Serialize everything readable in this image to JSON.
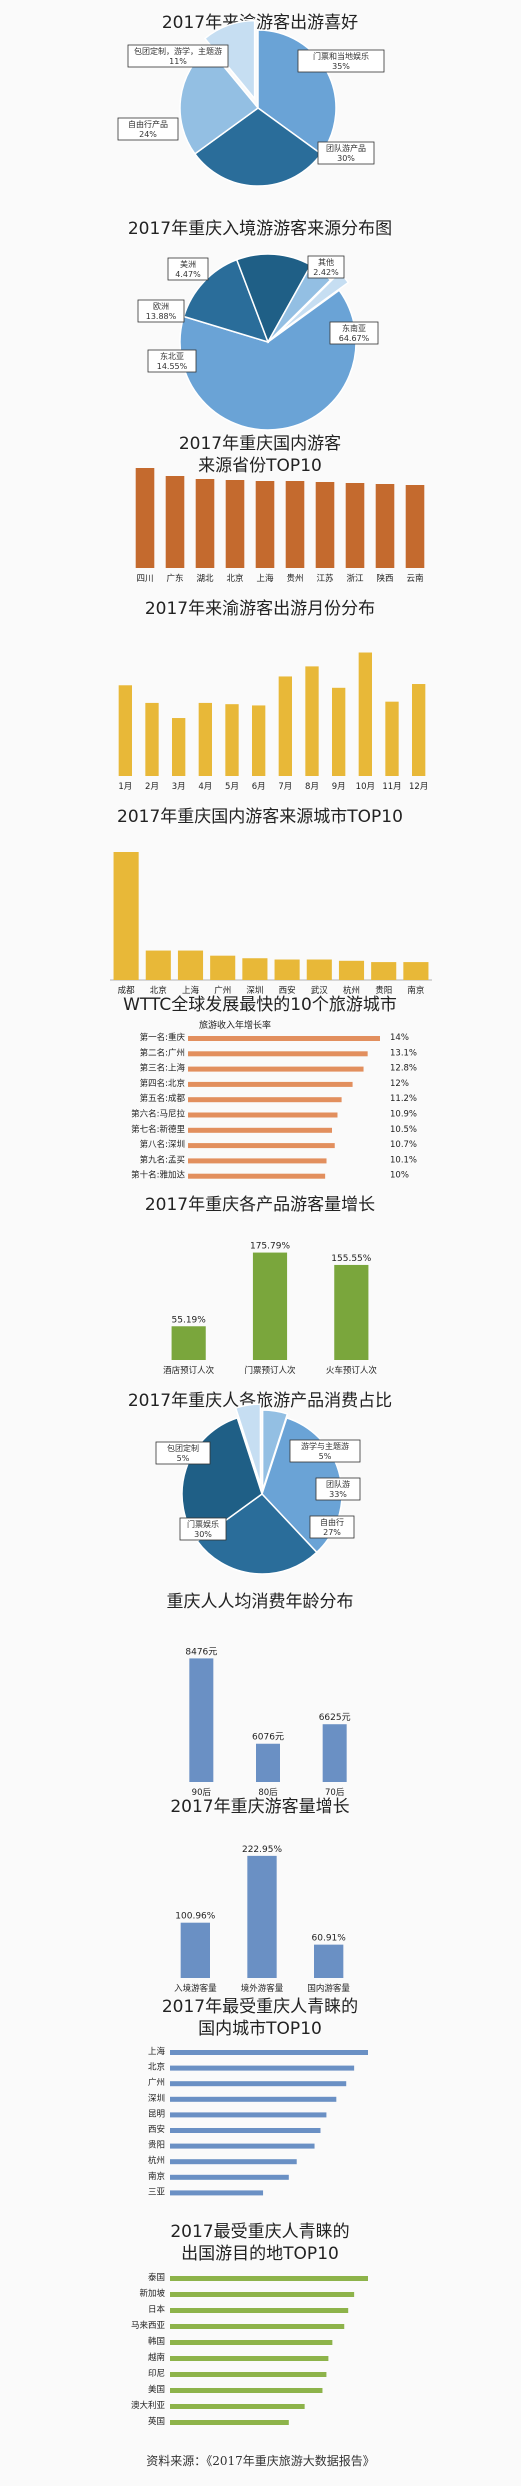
{
  "colors": {
    "pie_a": "#6aa3d6",
    "pie_b": "#2a6d9a",
    "pie_c": "#93bfe3",
    "pie_d": "#c6def2",
    "pie_e": "#1f5f86",
    "orange": "#c46a2e",
    "gold": "#e8b838",
    "salmon": "#e28f5e",
    "green": "#7aa63c",
    "blue": "#6a90c4",
    "lightgreen": "#8db34a"
  },
  "chart_data": [
    {
      "id": "c1",
      "type": "pie",
      "title": "2017年来渝游客出游喜好",
      "slices": [
        {
          "label": "门票和当地娱乐",
          "value": 35
        },
        {
          "label": "团队游产品",
          "value": 30
        },
        {
          "label": "自由行产品",
          "value": 24
        },
        {
          "label": "包团定制，游学，主题游",
          "value": 11
        }
      ],
      "value_labels": [
        "35%",
        "30%",
        "24%",
        "11%"
      ]
    },
    {
      "id": "c2",
      "type": "pie",
      "title": "2017年重庆入境游游客来源分布图",
      "slices": [
        {
          "label": "东南亚",
          "value": 64.67
        },
        {
          "label": "东北亚",
          "value": 14.55
        },
        {
          "label": "欧洲",
          "value": 13.88
        },
        {
          "label": "美洲",
          "value": 4.47
        },
        {
          "label": "其他",
          "value": 2.42
        }
      ],
      "value_labels": [
        "64.67%",
        "14.55%",
        "13.88%",
        "4.47%",
        "2.42%"
      ]
    },
    {
      "id": "c3",
      "type": "bar",
      "title": "2017年重庆国内游客",
      "subtitle": "来源省份TOP10",
      "categories": [
        "四川",
        "广东",
        "湖北",
        "北京",
        "上海",
        "贵州",
        "江苏",
        "浙江",
        "陕西",
        "云南"
      ],
      "values": [
        100,
        92,
        89,
        88,
        87,
        87,
        86,
        85,
        84,
        83
      ]
    },
    {
      "id": "c4",
      "type": "bar",
      "title": "2017年来渝游客出游月份分布",
      "categories": [
        "1月",
        "2月",
        "3月",
        "4月",
        "5月",
        "6月",
        "7月",
        "8月",
        "9月",
        "10月",
        "11月",
        "12月"
      ],
      "values": [
        72,
        58,
        46,
        58,
        57,
        56,
        79,
        87,
        70,
        98,
        59,
        73
      ]
    },
    {
      "id": "c5",
      "type": "bar",
      "title": "2017年重庆国内游客来源城市TOP10",
      "categories": [
        "成都",
        "北京",
        "上海",
        "广州",
        "深圳",
        "西安",
        "武汉",
        "杭州",
        "贵阳",
        "南京"
      ],
      "values": [
        100,
        23,
        23,
        19,
        17,
        16,
        16,
        15,
        14,
        14
      ]
    },
    {
      "id": "c6",
      "type": "bar",
      "orientation": "horizontal",
      "title": "WTTC全球发展最快的10个旅游城市",
      "subtitle": "旅游收入年增长率",
      "categories": [
        "第一名:重庆",
        "第二名:广州",
        "第三名:上海",
        "第四名:北京",
        "第五名:成都",
        "第六名:马尼拉",
        "第七名:新德里",
        "第八名:深圳",
        "第九名:孟买",
        "第十名:雅加达"
      ],
      "values": [
        14,
        13.1,
        12.8,
        12,
        11.2,
        10.9,
        10.5,
        10.7,
        10.1,
        10
      ],
      "value_labels": [
        "14%",
        "13.1%",
        "12.8%",
        "12%",
        "11.2%",
        "10.9%",
        "10.5%",
        "10.7%",
        "10.1%",
        "10%"
      ]
    },
    {
      "id": "c7",
      "type": "bar",
      "title": "2017年重庆各产品游客量增长",
      "categories": [
        "酒店预订人次",
        "门票预订人次",
        "火车预订人次"
      ],
      "values": [
        55.19,
        175.79,
        155.55
      ],
      "value_labels": [
        "55.19%",
        "175.79%",
        "155.55%"
      ]
    },
    {
      "id": "c8",
      "type": "pie",
      "title": "2017年重庆人各旅游产品消费占比",
      "slices": [
        {
          "label": "游学与主题游",
          "value": 5
        },
        {
          "label": "团队游",
          "value": 33
        },
        {
          "label": "自由行",
          "value": 27
        },
        {
          "label": "门票娱乐",
          "value": 30
        },
        {
          "label": "包团定制",
          "value": 5
        }
      ],
      "value_labels": [
        "5%",
        "33%",
        "27%",
        "30%",
        "5%"
      ]
    },
    {
      "id": "c9",
      "type": "bar",
      "title": "重庆人人均消费年龄分布",
      "categories": [
        "90后",
        "80后",
        "70后"
      ],
      "values": [
        8476,
        6076,
        6625
      ],
      "value_labels": [
        "8476元",
        "6076元",
        "6625元"
      ]
    },
    {
      "id": "c10",
      "type": "bar",
      "title": "2017年重庆游客量增长",
      "categories": [
        "入境游客量",
        "境外游客量",
        "国内游客量"
      ],
      "values": [
        100.96,
        222.95,
        60.91
      ],
      "value_labels": [
        "100.96%",
        "222.95%",
        "60.91%"
      ]
    },
    {
      "id": "c11",
      "type": "bar",
      "orientation": "horizontal",
      "title": "2017年最受重庆人青睐的",
      "subtitle": "国内城市TOP10",
      "categories": [
        "上海",
        "北京",
        "广州",
        "深圳",
        "昆明",
        "西安",
        "贵阳",
        "杭州",
        "南京",
        "三亚"
      ],
      "values": [
        100,
        93,
        89,
        84,
        79,
        76,
        73,
        64,
        60,
        47
      ]
    },
    {
      "id": "c12",
      "type": "bar",
      "orientation": "horizontal",
      "title": "2017最受重庆人青睐的",
      "subtitle": "出国游目的地TOP10",
      "categories": [
        "泰国",
        "新加坡",
        "日本",
        "马来西亚",
        "韩国",
        "越南",
        "印尼",
        "美国",
        "澳大利亚",
        "英国"
      ],
      "values": [
        100,
        93,
        90,
        88,
        82,
        80,
        79,
        77,
        68,
        60
      ]
    }
  ],
  "source": "资料来源：《2017年重庆旅游大数据报告》"
}
